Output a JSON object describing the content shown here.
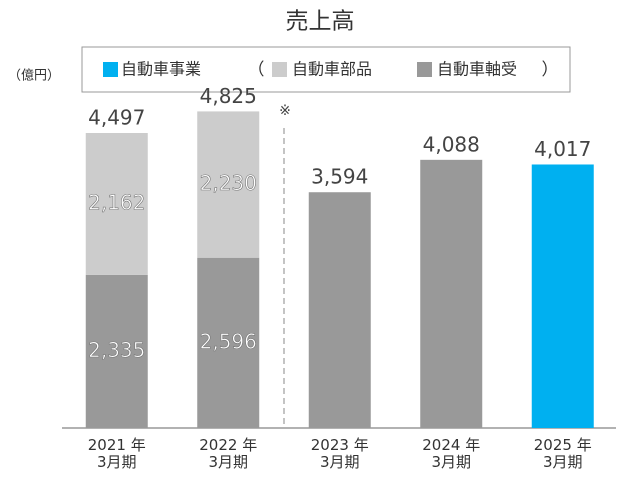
{
  "chart_data": {
    "type": "stacked_bar",
    "title": "売上高",
    "unit_label": "（億円）",
    "note": "※",
    "legend_open": "（",
    "legend_close": "）",
    "categories": [
      "2021 年\n3月期",
      "2022 年\n3月期",
      "2023 年\n3月期",
      "2024 年\n3月期",
      "2025 年\n3月期"
    ],
    "series": [
      {
        "name": "自動車事業",
        "color": "#00b0f0",
        "values": [
          null,
          null,
          null,
          null,
          4017
        ],
        "value_labels": [
          null,
          null,
          null,
          null,
          "4,017"
        ]
      },
      {
        "name": "自動車部品",
        "color": "#cccccc",
        "values": [
          2162,
          2230,
          null,
          null,
          null
        ],
        "value_labels": [
          "2,162",
          "2,230",
          null,
          null,
          null
        ]
      },
      {
        "name": "自動車軸受",
        "color": "#999999",
        "values": [
          2335,
          2596,
          3594,
          4088,
          null
        ],
        "value_labels": [
          "2,335",
          "2,596",
          "3,594",
          "4,088",
          null
        ]
      }
    ],
    "totals": [
      4497,
      4825,
      null,
      null,
      null
    ],
    "total_labels": [
      "4,497",
      "4,825",
      null,
      null,
      null
    ],
    "ylim": [
      0,
      5000
    ]
  }
}
